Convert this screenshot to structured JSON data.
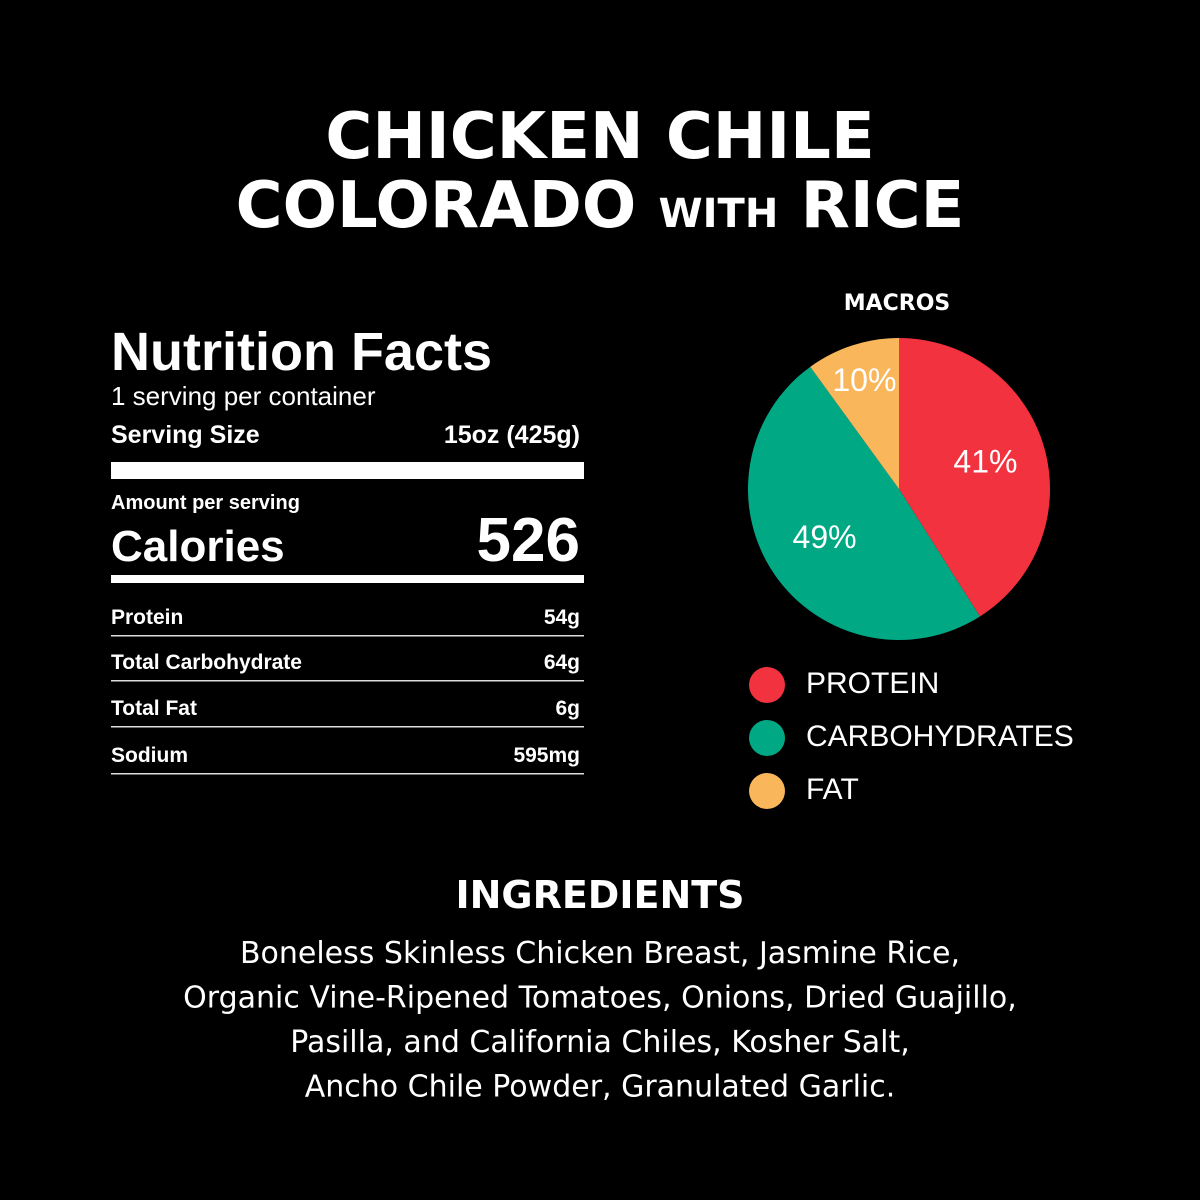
{
  "header": {
    "line1": "CHICKEN CHILE",
    "line2": "COLORADO",
    "line2_small": "WITH",
    "line2_end": "RICE"
  },
  "nutrition": {
    "title": "Nutrition Facts",
    "servings": "1 serving per container",
    "serving_size_label": "Serving Size",
    "serving_size": "15oz (425g)",
    "amount_label": "Amount per serving",
    "calories_label": "Calories",
    "calories": 526,
    "rows": [
      [
        "Protein",
        "54g"
      ],
      [
        "Total Carbohydrate",
        "64g"
      ],
      [
        "Total Fat",
        "6g"
      ],
      [
        "Sodium",
        "595mg"
      ]
    ]
  },
  "chart_data": {
    "type": "pie",
    "title": "MACROS",
    "categories": [
      "PROTEIN",
      "CARBOHYDRATES",
      "FAT"
    ],
    "values": [
      41,
      49,
      10
    ],
    "value_labels": [
      "41%",
      "49%",
      "10%"
    ],
    "colors": [
      "#f2323f",
      "#00a884",
      "#f9b65a"
    ]
  },
  "ingredients": {
    "title": "INGREDIENTS",
    "lines": [
      "Boneless Skinless Chicken Breast, Jasmine Rice,",
      "Organic Vine-Ripened Tomatoes, Onions, Dried Guajillo,",
      "Pasilla, and California Chiles, Kosher Salt,",
      "Ancho Chile Powder, Granulated Garlic."
    ]
  }
}
